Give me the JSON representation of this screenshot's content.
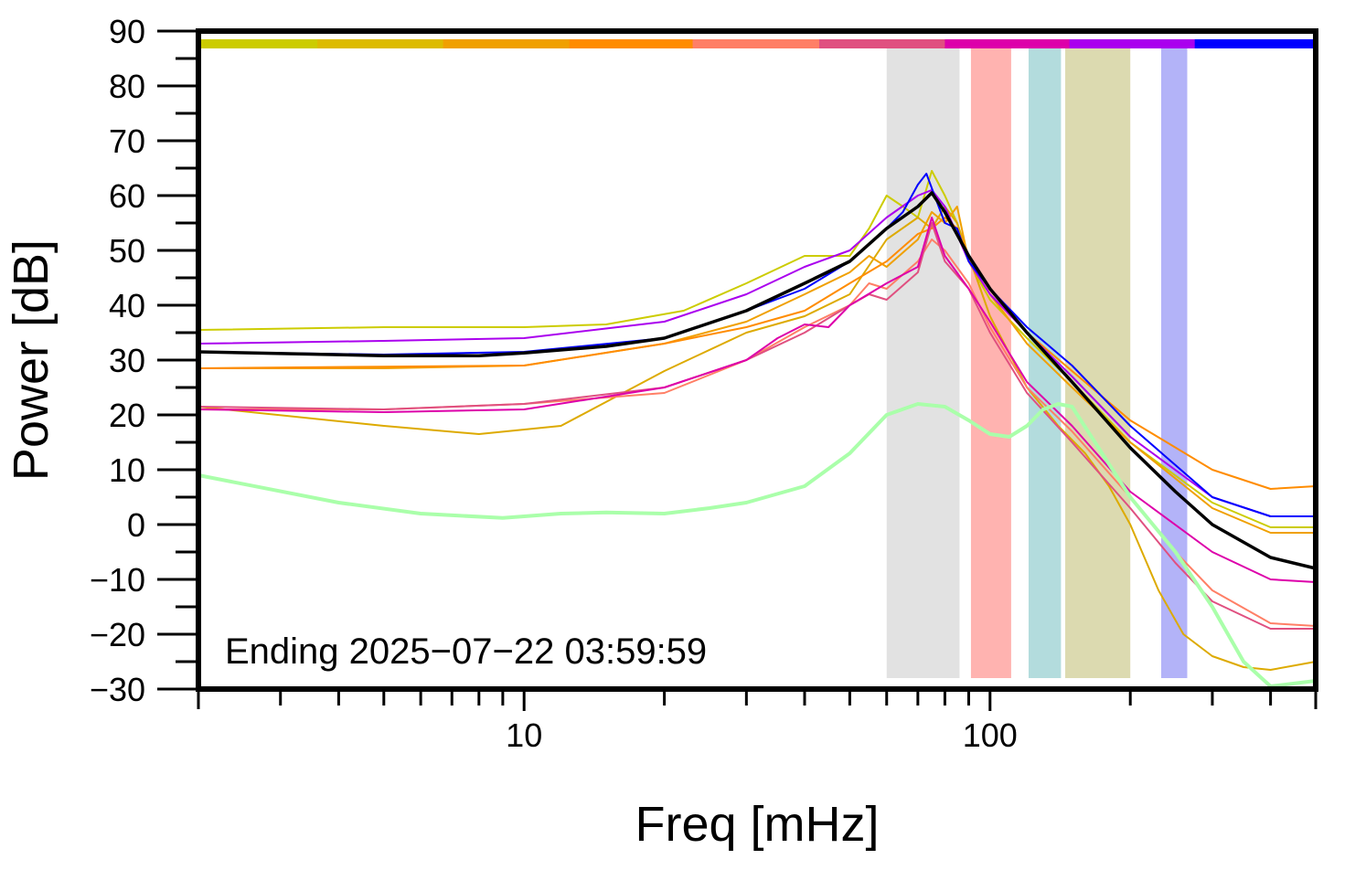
{
  "chart_data": {
    "type": "line",
    "xlabel": "Freq [mHz]",
    "ylabel": "Power [dB]",
    "xscale": "log",
    "xlim": [
      2,
      500
    ],
    "ylim": [
      -30,
      90
    ],
    "grid": false,
    "x_tick_labels": [
      {
        "value": 10,
        "label": "10"
      },
      {
        "value": 100,
        "label": "100"
      }
    ],
    "x_minor_ticks": [
      3,
      4,
      5,
      6,
      7,
      8,
      9,
      20,
      30,
      40,
      50,
      60,
      70,
      80,
      90,
      200,
      300,
      400
    ],
    "y_ticks": [
      90,
      80,
      70,
      60,
      50,
      40,
      30,
      20,
      10,
      0,
      -10,
      -20,
      -30
    ],
    "y_tick_labels": [
      "90",
      "80",
      "70",
      "60",
      "50",
      "40",
      "30",
      "20",
      "10",
      "0",
      "−10",
      "−20",
      "−30"
    ],
    "annotation": "Ending 2025−07−22 03:59:59",
    "top_color_bar": [
      {
        "from": 2,
        "to": 3.6,
        "color": "#cccc00"
      },
      {
        "from": 3.6,
        "to": 6.7,
        "color": "#ddbb00"
      },
      {
        "from": 6.7,
        "to": 12.5,
        "color": "#f0a000"
      },
      {
        "from": 12.5,
        "to": 23,
        "color": "#ff8c00"
      },
      {
        "from": 23,
        "to": 43,
        "color": "#ff7f66"
      },
      {
        "from": 43,
        "to": 80,
        "color": "#e05080"
      },
      {
        "from": 80,
        "to": 148,
        "color": "#dd00aa"
      },
      {
        "from": 148,
        "to": 275,
        "color": "#aa00ee"
      },
      {
        "from": 275,
        "to": 500,
        "color": "#0000ff"
      }
    ],
    "bands": [
      {
        "from": 60,
        "to": 86,
        "color": "#e2e2e2"
      },
      {
        "from": 91,
        "to": 111,
        "color": "#ffb3b0"
      },
      {
        "from": 121,
        "to": 142,
        "color": "#b3dcdd"
      },
      {
        "from": 145,
        "to": 200,
        "color": "#dcdab0"
      },
      {
        "from": 233,
        "to": 265,
        "color": "#b3b3f8"
      }
    ],
    "band_y_range": [
      -28,
      87
    ],
    "series": [
      {
        "color": "#cccc00",
        "width": 2,
        "x": [
          2,
          5,
          10,
          15,
          22,
          30,
          40,
          50,
          55,
          60,
          65,
          70,
          75,
          80,
          85,
          90,
          100,
          120,
          150,
          200,
          300,
          400,
          500
        ],
        "y": [
          35.5,
          36,
          36,
          36.5,
          39,
          44,
          49,
          49,
          54,
          60,
          58,
          56,
          64.5,
          60,
          55,
          48,
          41,
          34,
          26,
          15,
          4,
          -0.5,
          -0.5
        ]
      },
      {
        "color": "#ddaa00",
        "width": 2,
        "x": [
          2,
          5,
          8,
          12,
          20,
          30,
          40,
          50,
          60,
          70,
          75,
          80,
          85,
          90,
          100,
          120,
          140,
          160,
          180,
          200,
          230,
          260,
          300,
          350,
          400,
          500
        ],
        "y": [
          21.5,
          18,
          16.5,
          18,
          28,
          35,
          38,
          42,
          52,
          56,
          54,
          58,
          55,
          49,
          38,
          25,
          18,
          13,
          7,
          0,
          -12,
          -20,
          -24,
          -26,
          -26.5,
          -25
        ]
      },
      {
        "color": "#f0a000",
        "width": 2,
        "x": [
          2,
          5,
          10,
          20,
          30,
          40,
          50,
          55,
          60,
          70,
          75,
          80,
          85,
          90,
          100,
          120,
          150,
          200,
          300,
          400,
          500
        ],
        "y": [
          28.5,
          28.5,
          29,
          33,
          37,
          42,
          46,
          49,
          47,
          52,
          57,
          55,
          58,
          48,
          42,
          33,
          25,
          15,
          3,
          -1.5,
          -1.5
        ]
      },
      {
        "color": "#ff8c00",
        "width": 2,
        "x": [
          2,
          5,
          10,
          20,
          30,
          40,
          50,
          60,
          70,
          75,
          80,
          85,
          90,
          100,
          120,
          150,
          200,
          300,
          400,
          500
        ],
        "y": [
          28.5,
          28.8,
          29,
          33,
          36,
          39,
          44,
          48,
          53,
          54,
          56,
          54,
          49,
          43,
          35,
          28,
          19,
          10,
          6.5,
          7
        ]
      },
      {
        "color": "#ff7f66",
        "width": 2,
        "x": [
          2,
          5,
          10,
          20,
          30,
          40,
          50,
          55,
          60,
          70,
          75,
          80,
          90,
          100,
          120,
          150,
          200,
          250,
          300,
          400,
          500
        ],
        "y": [
          21,
          21,
          22,
          24,
          30,
          36,
          40,
          44,
          43,
          48,
          52,
          50,
          44,
          36,
          25,
          17,
          5,
          -5,
          -12,
          -18,
          -18.5
        ]
      },
      {
        "color": "#e05080",
        "width": 2,
        "x": [
          2,
          5,
          10,
          20,
          30,
          40,
          50,
          55,
          60,
          70,
          75,
          80,
          90,
          100,
          120,
          150,
          200,
          250,
          300,
          400,
          500
        ],
        "y": [
          21.5,
          21,
          22,
          25,
          30,
          35,
          40,
          42,
          41,
          46,
          55,
          48,
          43,
          35,
          24,
          15,
          3,
          -7,
          -14,
          -19,
          -19
        ]
      },
      {
        "color": "#dd00aa",
        "width": 2,
        "x": [
          2,
          5,
          10,
          20,
          30,
          35,
          40,
          45,
          50,
          60,
          70,
          75,
          80,
          90,
          100,
          120,
          150,
          200,
          300,
          400,
          500
        ],
        "y": [
          21,
          20.5,
          21,
          25,
          30,
          34,
          36.5,
          36,
          40,
          44,
          47,
          56,
          49,
          43,
          37,
          26,
          18,
          6,
          -5,
          -10,
          -10.5
        ]
      },
      {
        "color": "#aa00ee",
        "width": 2,
        "x": [
          2,
          5,
          10,
          20,
          30,
          40,
          50,
          60,
          70,
          75,
          80,
          90,
          100,
          120,
          150,
          200,
          300,
          400,
          500
        ],
        "y": [
          33,
          33.5,
          34,
          37,
          42,
          47,
          50,
          56,
          60,
          61,
          58,
          48,
          42,
          35,
          27,
          16,
          5,
          1.5,
          1.5
        ]
      },
      {
        "color": "#0000ff",
        "width": 2,
        "x": [
          2,
          5,
          10,
          20,
          30,
          40,
          50,
          60,
          65,
          70,
          73,
          76,
          80,
          85,
          90,
          100,
          120,
          150,
          200,
          300,
          400,
          500
        ],
        "y": [
          31.5,
          31,
          31.5,
          34,
          39,
          43,
          48,
          54,
          57,
          62,
          64,
          60,
          55,
          54,
          48,
          43,
          36,
          29,
          18,
          5,
          1.5,
          1.5
        ]
      },
      {
        "color": "#000000",
        "width": 3.5,
        "x": [
          2,
          5,
          8,
          10,
          15,
          20,
          30,
          40,
          50,
          60,
          70,
          75,
          80,
          90,
          100,
          120,
          150,
          200,
          250,
          300,
          400,
          500
        ],
        "y": [
          31.5,
          30.8,
          30.8,
          31.3,
          32.5,
          34,
          39,
          44,
          48,
          54,
          58,
          60.5,
          57,
          49,
          43,
          35,
          26,
          14,
          6,
          0,
          -6,
          -8
        ]
      },
      {
        "color": "#aaffaa",
        "width": 4,
        "x": [
          2,
          4,
          6,
          9,
          12,
          15,
          20,
          25,
          30,
          40,
          50,
          60,
          70,
          80,
          90,
          100,
          110,
          120,
          130,
          140,
          150,
          200,
          250,
          300,
          350,
          400,
          500
        ],
        "y": [
          9,
          4,
          2,
          1.2,
          2,
          2.2,
          2,
          3,
          4,
          7,
          13,
          20,
          22,
          21.5,
          19,
          16.5,
          16,
          18,
          21,
          22,
          21.5,
          5,
          -5,
          -15,
          -25,
          -29.5,
          -28.5
        ]
      }
    ]
  }
}
